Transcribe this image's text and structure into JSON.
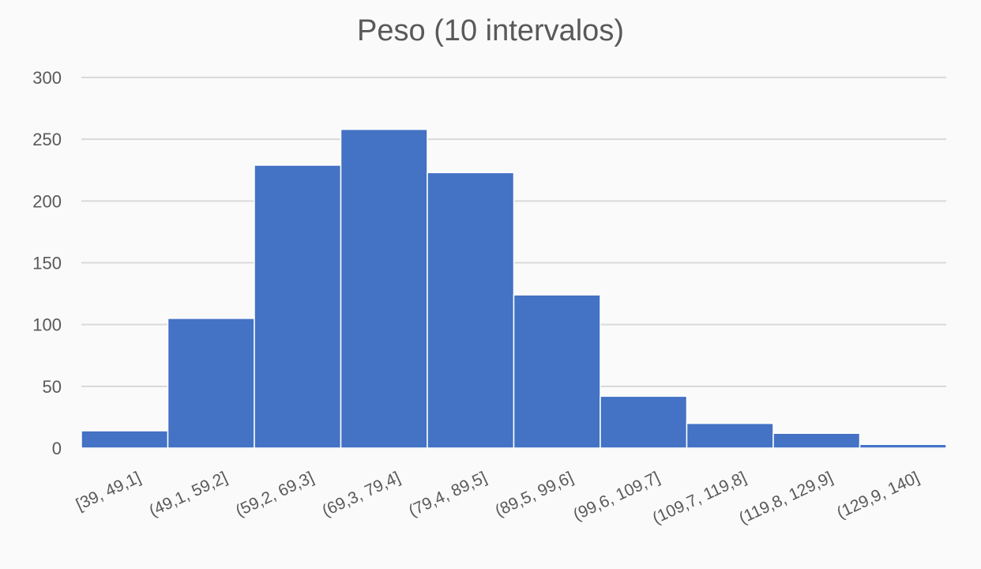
{
  "chart_data": {
    "type": "bar",
    "title": "Peso (10 intervalos)",
    "xlabel": "",
    "ylabel": "",
    "categories": [
      "[39, 49,1]",
      "(49,1, 59,2]",
      "(59,2, 69,3]",
      "(69,3, 79,4]",
      "(79,4, 89,5]",
      "(89,5, 99,6]",
      "(99,6, 109,7]",
      "(109,7, 119,8]",
      "(119,8, 129,9]",
      "(129,9, 140]"
    ],
    "values": [
      14,
      105,
      229,
      258,
      223,
      124,
      42,
      20,
      12,
      3
    ],
    "ylim": [
      0,
      300
    ],
    "yticks": [
      0,
      50,
      100,
      150,
      200,
      250,
      300
    ],
    "grid": true,
    "legend": "none",
    "bar_color": "#4472c4",
    "grid_color": "#d9d9d9",
    "text_color": "#595959"
  }
}
